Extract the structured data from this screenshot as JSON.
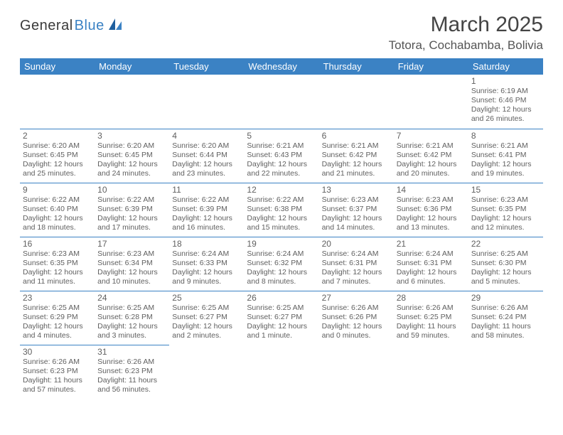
{
  "logo": {
    "text1": "General",
    "text2": "Blue"
  },
  "title": "March 2025",
  "location": "Totora, Cochabamba, Bolivia",
  "colors": {
    "header_bg": "#3b82c4",
    "header_text": "#ffffff",
    "cell_border": "#3b82c4",
    "text": "#606060",
    "logo_gray": "#3a3a3a",
    "logo_blue": "#3b82c4"
  },
  "weekdays": [
    "Sunday",
    "Monday",
    "Tuesday",
    "Wednesday",
    "Thursday",
    "Friday",
    "Saturday"
  ],
  "weeks": [
    [
      null,
      null,
      null,
      null,
      null,
      null,
      {
        "n": "1",
        "sr": "Sunrise: 6:19 AM",
        "ss": "Sunset: 6:46 PM",
        "dl": "Daylight: 12 hours and 26 minutes."
      }
    ],
    [
      {
        "n": "2",
        "sr": "Sunrise: 6:20 AM",
        "ss": "Sunset: 6:45 PM",
        "dl": "Daylight: 12 hours and 25 minutes."
      },
      {
        "n": "3",
        "sr": "Sunrise: 6:20 AM",
        "ss": "Sunset: 6:45 PM",
        "dl": "Daylight: 12 hours and 24 minutes."
      },
      {
        "n": "4",
        "sr": "Sunrise: 6:20 AM",
        "ss": "Sunset: 6:44 PM",
        "dl": "Daylight: 12 hours and 23 minutes."
      },
      {
        "n": "5",
        "sr": "Sunrise: 6:21 AM",
        "ss": "Sunset: 6:43 PM",
        "dl": "Daylight: 12 hours and 22 minutes."
      },
      {
        "n": "6",
        "sr": "Sunrise: 6:21 AM",
        "ss": "Sunset: 6:42 PM",
        "dl": "Daylight: 12 hours and 21 minutes."
      },
      {
        "n": "7",
        "sr": "Sunrise: 6:21 AM",
        "ss": "Sunset: 6:42 PM",
        "dl": "Daylight: 12 hours and 20 minutes."
      },
      {
        "n": "8",
        "sr": "Sunrise: 6:21 AM",
        "ss": "Sunset: 6:41 PM",
        "dl": "Daylight: 12 hours and 19 minutes."
      }
    ],
    [
      {
        "n": "9",
        "sr": "Sunrise: 6:22 AM",
        "ss": "Sunset: 6:40 PM",
        "dl": "Daylight: 12 hours and 18 minutes."
      },
      {
        "n": "10",
        "sr": "Sunrise: 6:22 AM",
        "ss": "Sunset: 6:39 PM",
        "dl": "Daylight: 12 hours and 17 minutes."
      },
      {
        "n": "11",
        "sr": "Sunrise: 6:22 AM",
        "ss": "Sunset: 6:39 PM",
        "dl": "Daylight: 12 hours and 16 minutes."
      },
      {
        "n": "12",
        "sr": "Sunrise: 6:22 AM",
        "ss": "Sunset: 6:38 PM",
        "dl": "Daylight: 12 hours and 15 minutes."
      },
      {
        "n": "13",
        "sr": "Sunrise: 6:23 AM",
        "ss": "Sunset: 6:37 PM",
        "dl": "Daylight: 12 hours and 14 minutes."
      },
      {
        "n": "14",
        "sr": "Sunrise: 6:23 AM",
        "ss": "Sunset: 6:36 PM",
        "dl": "Daylight: 12 hours and 13 minutes."
      },
      {
        "n": "15",
        "sr": "Sunrise: 6:23 AM",
        "ss": "Sunset: 6:35 PM",
        "dl": "Daylight: 12 hours and 12 minutes."
      }
    ],
    [
      {
        "n": "16",
        "sr": "Sunrise: 6:23 AM",
        "ss": "Sunset: 6:35 PM",
        "dl": "Daylight: 12 hours and 11 minutes."
      },
      {
        "n": "17",
        "sr": "Sunrise: 6:23 AM",
        "ss": "Sunset: 6:34 PM",
        "dl": "Daylight: 12 hours and 10 minutes."
      },
      {
        "n": "18",
        "sr": "Sunrise: 6:24 AM",
        "ss": "Sunset: 6:33 PM",
        "dl": "Daylight: 12 hours and 9 minutes."
      },
      {
        "n": "19",
        "sr": "Sunrise: 6:24 AM",
        "ss": "Sunset: 6:32 PM",
        "dl": "Daylight: 12 hours and 8 minutes."
      },
      {
        "n": "20",
        "sr": "Sunrise: 6:24 AM",
        "ss": "Sunset: 6:31 PM",
        "dl": "Daylight: 12 hours and 7 minutes."
      },
      {
        "n": "21",
        "sr": "Sunrise: 6:24 AM",
        "ss": "Sunset: 6:31 PM",
        "dl": "Daylight: 12 hours and 6 minutes."
      },
      {
        "n": "22",
        "sr": "Sunrise: 6:25 AM",
        "ss": "Sunset: 6:30 PM",
        "dl": "Daylight: 12 hours and 5 minutes."
      }
    ],
    [
      {
        "n": "23",
        "sr": "Sunrise: 6:25 AM",
        "ss": "Sunset: 6:29 PM",
        "dl": "Daylight: 12 hours and 4 minutes."
      },
      {
        "n": "24",
        "sr": "Sunrise: 6:25 AM",
        "ss": "Sunset: 6:28 PM",
        "dl": "Daylight: 12 hours and 3 minutes."
      },
      {
        "n": "25",
        "sr": "Sunrise: 6:25 AM",
        "ss": "Sunset: 6:27 PM",
        "dl": "Daylight: 12 hours and 2 minutes."
      },
      {
        "n": "26",
        "sr": "Sunrise: 6:25 AM",
        "ss": "Sunset: 6:27 PM",
        "dl": "Daylight: 12 hours and 1 minute."
      },
      {
        "n": "27",
        "sr": "Sunrise: 6:26 AM",
        "ss": "Sunset: 6:26 PM",
        "dl": "Daylight: 12 hours and 0 minutes."
      },
      {
        "n": "28",
        "sr": "Sunrise: 6:26 AM",
        "ss": "Sunset: 6:25 PM",
        "dl": "Daylight: 11 hours and 59 minutes."
      },
      {
        "n": "29",
        "sr": "Sunrise: 6:26 AM",
        "ss": "Sunset: 6:24 PM",
        "dl": "Daylight: 11 hours and 58 minutes."
      }
    ],
    [
      {
        "n": "30",
        "sr": "Sunrise: 6:26 AM",
        "ss": "Sunset: 6:23 PM",
        "dl": "Daylight: 11 hours and 57 minutes."
      },
      {
        "n": "31",
        "sr": "Sunrise: 6:26 AM",
        "ss": "Sunset: 6:23 PM",
        "dl": "Daylight: 11 hours and 56 minutes."
      },
      null,
      null,
      null,
      null,
      null
    ]
  ]
}
